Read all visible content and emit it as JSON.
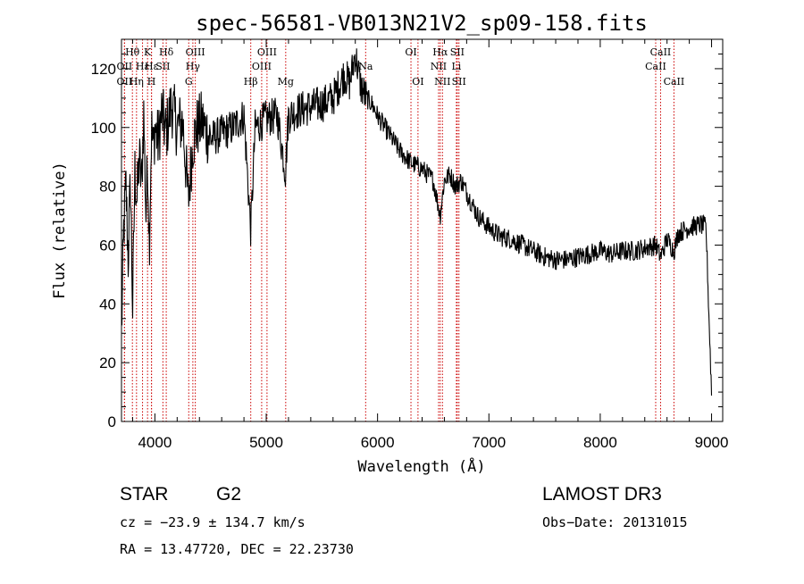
{
  "chart_data": {
    "type": "line",
    "title": "spec-56581-VB013N21V2_sp09-158.fits",
    "xlabel": "Wavelength (Å)",
    "ylabel": "Flux (relative)",
    "xlim": [
      3700,
      9100
    ],
    "ylim": [
      0,
      130
    ],
    "x_ticks": [
      4000,
      5000,
      6000,
      7000,
      8000,
      9000
    ],
    "x_minor_step": 200,
    "y_ticks": [
      0,
      20,
      40,
      60,
      80,
      100,
      120
    ],
    "y_minor_step": 5,
    "spectrum": {
      "x": [
        3700,
        3720,
        3740,
        3760,
        3780,
        3800,
        3820,
        3840,
        3860,
        3880,
        3900,
        3920,
        3935,
        3950,
        3970,
        3985,
        4000,
        4030,
        4060,
        4100,
        4150,
        4200,
        4250,
        4300,
        4340,
        4380,
        4420,
        4500,
        4600,
        4700,
        4800,
        4861,
        4900,
        5000,
        5100,
        5172,
        5200,
        5300,
        5400,
        5500,
        5600,
        5700,
        5750,
        5800,
        5850,
        5900,
        5950,
        6000,
        6100,
        6200,
        6300,
        6400,
        6500,
        6563,
        6600,
        6650,
        6700,
        6750,
        6800,
        6900,
        7000,
        7100,
        7200,
        7300,
        7400,
        7500,
        7600,
        7700,
        7800,
        7900,
        8000,
        8100,
        8200,
        8300,
        8400,
        8500,
        8542,
        8600,
        8662,
        8700,
        8800,
        8900,
        8950,
        9000
      ],
      "y": [
        30,
        65,
        80,
        55,
        82,
        38,
        85,
        75,
        90,
        80,
        105,
        70,
        90,
        60,
        100,
        92,
        100,
        95,
        105,
        98,
        108,
        100,
        102,
        75,
        95,
        100,
        102,
        96,
        98,
        100,
        104,
        65,
        100,
        103,
        104,
        85,
        104,
        106,
        107,
        108,
        110,
        118,
        115,
        125,
        114,
        110,
        108,
        104,
        98,
        92,
        88,
        86,
        82,
        70,
        82,
        84,
        80,
        82,
        78,
        70,
        66,
        63,
        62,
        60,
        58,
        56,
        55,
        55,
        56,
        57,
        58,
        57,
        58,
        58,
        59,
        60,
        56,
        62,
        58,
        64,
        66,
        67,
        66,
        10
      ],
      "noise_amplitude": 5
    },
    "spectral_lines": [
      {
        "label": "Hθ",
        "wavelength": 3798,
        "row": 0
      },
      {
        "label": "OII",
        "wavelength": 3727,
        "row": 1
      },
      {
        "label": "OII",
        "wavelength": 3727,
        "row": 2
      },
      {
        "label": "Hη",
        "wavelength": 3835,
        "row": 2
      },
      {
        "label": "Hε",
        "wavelength": 3889,
        "row": 1
      },
      {
        "label": "K",
        "wavelength": 3934,
        "row": 0
      },
      {
        "label": "H",
        "wavelength": 3969,
        "row": 2
      },
      {
        "label": "Hε",
        "wavelength": 3970,
        "row": 1
      },
      {
        "label": "SII",
        "wavelength": 4072,
        "row": 1
      },
      {
        "label": "Hδ",
        "wavelength": 4102,
        "row": 0
      },
      {
        "label": "OIII",
        "wavelength": 4363,
        "row": 0
      },
      {
        "label": "Hγ",
        "wavelength": 4341,
        "row": 1
      },
      {
        "label": "G",
        "wavelength": 4304,
        "row": 2
      },
      {
        "label": "Hβ",
        "wavelength": 4861,
        "row": 2
      },
      {
        "label": "OIII",
        "wavelength": 4959,
        "row": 1
      },
      {
        "label": "OIII",
        "wavelength": 5007,
        "row": 0
      },
      {
        "label": "Mg",
        "wavelength": 5175,
        "row": 2
      },
      {
        "label": "Na",
        "wavelength": 5893,
        "row": 1
      },
      {
        "label": "OI",
        "wavelength": 6300,
        "row": 0
      },
      {
        "label": "OI",
        "wavelength": 6363,
        "row": 2
      },
      {
        "label": "NII",
        "wavelength": 6548,
        "row": 1
      },
      {
        "label": "Hα",
        "wavelength": 6563,
        "row": 0
      },
      {
        "label": "NII",
        "wavelength": 6583,
        "row": 2
      },
      {
        "label": "SII",
        "wavelength": 6716,
        "row": 0
      },
      {
        "label": "Li",
        "wavelength": 6708,
        "row": 1
      },
      {
        "label": "SII",
        "wavelength": 6731,
        "row": 2
      },
      {
        "label": "CaII",
        "wavelength": 8498,
        "row": 1
      },
      {
        "label": "CaII",
        "wavelength": 8542,
        "row": 0
      },
      {
        "label": "CaII",
        "wavelength": 8662,
        "row": 2
      }
    ],
    "colors": {
      "line": "#000000",
      "marker": "#cc0000",
      "axes": "#000000",
      "background": "#ffffff"
    }
  },
  "info": {
    "object_class": "STAR",
    "subclass": "G2",
    "survey": "LAMOST DR3",
    "redshift": "cz = −23.9 ± 134.7 km/s",
    "obs_date": "Obs−Date: 20131015",
    "coordinates": "RA =  13.47720, DEC =  22.23730"
  }
}
